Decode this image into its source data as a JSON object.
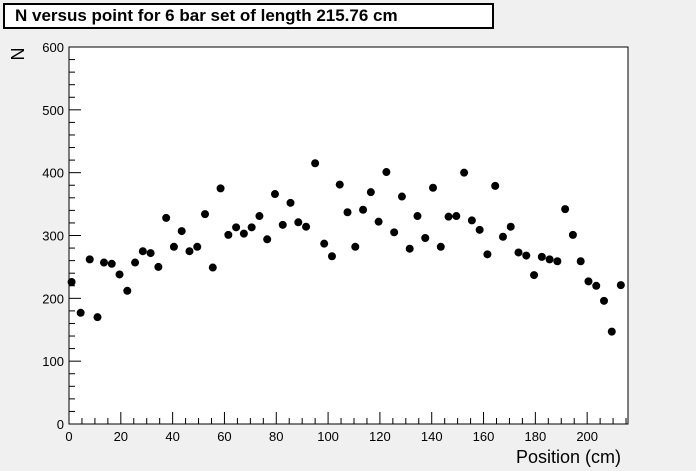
{
  "chart_data": {
    "type": "scatter",
    "title": "N versus point for 6 bar set of length 215.76 cm",
    "xlabel": "Position (cm)",
    "ylabel": "N",
    "xlim": [
      0,
      215.76
    ],
    "ylim": [
      0,
      600
    ],
    "x_ticks": [
      "0",
      "20",
      "40",
      "60",
      "80",
      "100",
      "120",
      "140",
      "160",
      "180",
      "200"
    ],
    "y_ticks": [
      "0",
      "100",
      "200",
      "300",
      "400",
      "500",
      "600"
    ],
    "grid": false,
    "legend": "none",
    "marker_color": "#000000",
    "points": [
      [
        1,
        226
      ],
      [
        4.5,
        177
      ],
      [
        8,
        262
      ],
      [
        11,
        170
      ],
      [
        13.5,
        257
      ],
      [
        16.5,
        255
      ],
      [
        19.5,
        238
      ],
      [
        22.5,
        212
      ],
      [
        25.5,
        257
      ],
      [
        28.5,
        275
      ],
      [
        31.5,
        272
      ],
      [
        34.5,
        250
      ],
      [
        37.5,
        328
      ],
      [
        40.5,
        282
      ],
      [
        43.5,
        307
      ],
      [
        46.5,
        275
      ],
      [
        49.5,
        282
      ],
      [
        52.5,
        334
      ],
      [
        55.5,
        249
      ],
      [
        58.5,
        375
      ],
      [
        61.5,
        301
      ],
      [
        64.5,
        313
      ],
      [
        67.5,
        303
      ],
      [
        70.5,
        313
      ],
      [
        73.5,
        331
      ],
      [
        76.5,
        294
      ],
      [
        79.5,
        366
      ],
      [
        82.5,
        317
      ],
      [
        85.5,
        352
      ],
      [
        88.5,
        321
      ],
      [
        91.5,
        314
      ],
      [
        95,
        415
      ],
      [
        98.5,
        287
      ],
      [
        101.5,
        267
      ],
      [
        104.5,
        381
      ],
      [
        107.5,
        337
      ],
      [
        110.5,
        282
      ],
      [
        113.5,
        341
      ],
      [
        116.5,
        369
      ],
      [
        119.5,
        322
      ],
      [
        122.5,
        401
      ],
      [
        125.5,
        305
      ],
      [
        128.5,
        362
      ],
      [
        131.5,
        279
      ],
      [
        134.5,
        331
      ],
      [
        137.5,
        296
      ],
      [
        140.5,
        376
      ],
      [
        143.5,
        282
      ],
      [
        146.5,
        330
      ],
      [
        149.5,
        331
      ],
      [
        152.5,
        400
      ],
      [
        155.5,
        324
      ],
      [
        158.5,
        309
      ],
      [
        161.5,
        270
      ],
      [
        164.5,
        379
      ],
      [
        167.5,
        298
      ],
      [
        170.5,
        314
      ],
      [
        173.5,
        273
      ],
      [
        176.5,
        268
      ],
      [
        179.5,
        237
      ],
      [
        182.5,
        266
      ],
      [
        185.5,
        262
      ],
      [
        188.5,
        259
      ],
      [
        191.5,
        342
      ],
      [
        194.5,
        301
      ],
      [
        197.5,
        259
      ],
      [
        200.5,
        227
      ],
      [
        203.5,
        220
      ],
      [
        206.5,
        196
      ],
      [
        209.5,
        147
      ],
      [
        213,
        221
      ]
    ]
  }
}
